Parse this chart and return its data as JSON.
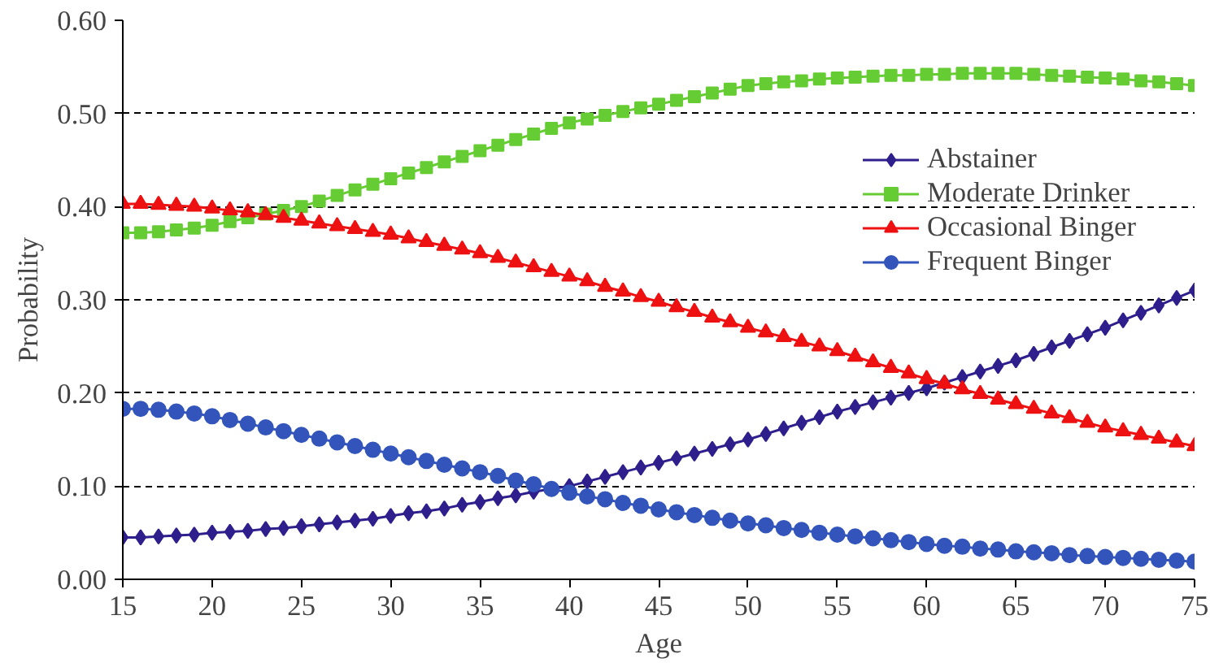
{
  "chart_data": {
    "type": "line",
    "xlabel": "Age",
    "ylabel": "Probability",
    "x": [
      15,
      16,
      17,
      18,
      19,
      20,
      21,
      22,
      23,
      24,
      25,
      26,
      27,
      28,
      29,
      30,
      31,
      32,
      33,
      34,
      35,
      36,
      37,
      38,
      39,
      40,
      41,
      42,
      43,
      44,
      45,
      46,
      47,
      48,
      49,
      50,
      51,
      52,
      53,
      54,
      55,
      56,
      57,
      58,
      59,
      60,
      61,
      62,
      63,
      64,
      65,
      66,
      67,
      68,
      69,
      70,
      71,
      72,
      73,
      74,
      75
    ],
    "xlim": [
      15,
      75
    ],
    "xticks": [
      15,
      20,
      25,
      30,
      35,
      40,
      45,
      50,
      55,
      60,
      65,
      70,
      75
    ],
    "ylim": [
      0,
      0.6
    ],
    "yticks": [
      {
        "value": 0,
        "label": "0.00"
      },
      {
        "value": 0.1,
        "label": "0.10"
      },
      {
        "value": 0.2,
        "label": "0.20"
      },
      {
        "value": 0.3,
        "label": "0.30"
      },
      {
        "value": 0.4,
        "label": "0.40"
      },
      {
        "value": 0.5,
        "label": "0.50"
      },
      {
        "value": 0.6,
        "label": "0.60"
      }
    ],
    "grid": "y",
    "legend": "right",
    "line_style": "solid",
    "series": [
      {
        "name": "Abstainer",
        "color": "#2e1f8c",
        "marker": "diamond",
        "values": [
          0.045,
          0.045,
          0.046,
          0.047,
          0.048,
          0.05,
          0.051,
          0.052,
          0.054,
          0.055,
          0.057,
          0.059,
          0.061,
          0.063,
          0.065,
          0.068,
          0.071,
          0.073,
          0.076,
          0.08,
          0.083,
          0.087,
          0.09,
          0.094,
          0.097,
          0.1,
          0.105,
          0.11,
          0.115,
          0.12,
          0.125,
          0.13,
          0.135,
          0.14,
          0.145,
          0.15,
          0.156,
          0.162,
          0.168,
          0.174,
          0.18,
          0.185,
          0.19,
          0.195,
          0.2,
          0.205,
          0.211,
          0.217,
          0.223,
          0.229,
          0.235,
          0.242,
          0.249,
          0.256,
          0.263,
          0.27,
          0.278,
          0.286,
          0.294,
          0.302,
          0.31
        ]
      },
      {
        "name": "Moderate Drinker",
        "color": "#66cc33",
        "marker": "square",
        "values": [
          0.372,
          0.372,
          0.373,
          0.375,
          0.377,
          0.38,
          0.384,
          0.388,
          0.392,
          0.396,
          0.4,
          0.406,
          0.412,
          0.418,
          0.424,
          0.43,
          0.436,
          0.442,
          0.448,
          0.454,
          0.46,
          0.466,
          0.472,
          0.478,
          0.484,
          0.49,
          0.494,
          0.498,
          0.502,
          0.506,
          0.51,
          0.514,
          0.518,
          0.522,
          0.526,
          0.53,
          0.532,
          0.534,
          0.535,
          0.537,
          0.538,
          0.539,
          0.54,
          0.541,
          0.541,
          0.542,
          0.542,
          0.543,
          0.543,
          0.543,
          0.543,
          0.542,
          0.541,
          0.54,
          0.539,
          0.538,
          0.537,
          0.535,
          0.534,
          0.532,
          0.53
        ]
      },
      {
        "name": "Occasional Binger",
        "color": "#ee1111",
        "marker": "triangle",
        "values": [
          0.403,
          0.403,
          0.402,
          0.401,
          0.4,
          0.398,
          0.396,
          0.394,
          0.391,
          0.388,
          0.385,
          0.382,
          0.379,
          0.376,
          0.373,
          0.37,
          0.366,
          0.362,
          0.358,
          0.354,
          0.35,
          0.345,
          0.34,
          0.335,
          0.33,
          0.325,
          0.32,
          0.314,
          0.309,
          0.303,
          0.298,
          0.292,
          0.287,
          0.281,
          0.276,
          0.27,
          0.265,
          0.26,
          0.255,
          0.25,
          0.245,
          0.239,
          0.233,
          0.227,
          0.221,
          0.215,
          0.21,
          0.204,
          0.199,
          0.193,
          0.188,
          0.183,
          0.178,
          0.173,
          0.168,
          0.163,
          0.159,
          0.155,
          0.151,
          0.147,
          0.143
        ]
      },
      {
        "name": "Frequent Binger",
        "color": "#3355bb",
        "marker": "circle",
        "values": [
          0.183,
          0.183,
          0.182,
          0.18,
          0.178,
          0.175,
          0.171,
          0.167,
          0.163,
          0.159,
          0.155,
          0.151,
          0.147,
          0.143,
          0.139,
          0.135,
          0.131,
          0.127,
          0.123,
          0.119,
          0.115,
          0.111,
          0.106,
          0.102,
          0.097,
          0.093,
          0.089,
          0.086,
          0.082,
          0.079,
          0.075,
          0.072,
          0.069,
          0.066,
          0.063,
          0.06,
          0.058,
          0.055,
          0.053,
          0.05,
          0.048,
          0.046,
          0.044,
          0.042,
          0.04,
          0.038,
          0.036,
          0.035,
          0.033,
          0.032,
          0.03,
          0.029,
          0.028,
          0.026,
          0.025,
          0.024,
          0.023,
          0.022,
          0.021,
          0.02,
          0.019
        ]
      }
    ]
  }
}
